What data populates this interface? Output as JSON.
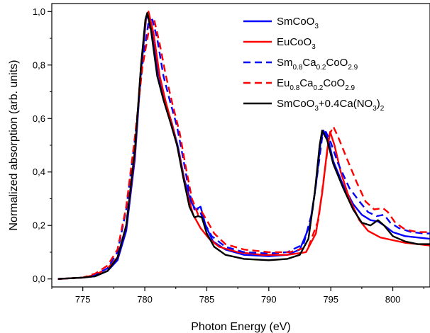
{
  "chart_data": {
    "type": "line",
    "xlabel": "Photon Energy (eV)",
    "ylabel": "Normalized absorption (arb. units)",
    "xlim": [
      772.5,
      803
    ],
    "ylim": [
      -0.03,
      1.03
    ],
    "x_ticks": [
      775,
      780,
      785,
      790,
      795,
      800
    ],
    "y_ticks": [
      0.0,
      0.2,
      0.4,
      0.6,
      0.8,
      1.0
    ],
    "x_tick_labels": [
      "775",
      "780",
      "785",
      "790",
      "795",
      "800"
    ],
    "y_tick_labels": [
      "0,0",
      "0,2",
      "0,4",
      "0,6",
      "0,8",
      "1,0"
    ],
    "legend_position": "top-right",
    "grid": false,
    "series": [
      {
        "name": "SmCoO3",
        "legend_parts": [
          [
            "SmCoO",
            ""
          ],
          [
            "3",
            "sub"
          ]
        ],
        "color": "#0000ff",
        "dash": "solid",
        "points": [
          [
            773,
            0.0
          ],
          [
            775,
            0.005
          ],
          [
            776,
            0.01
          ],
          [
            777,
            0.03
          ],
          [
            777.8,
            0.07
          ],
          [
            778.5,
            0.18
          ],
          [
            779.2,
            0.45
          ],
          [
            779.7,
            0.78
          ],
          [
            780.1,
            0.97
          ],
          [
            780.25,
            0.99
          ],
          [
            780.6,
            0.92
          ],
          [
            781.1,
            0.77
          ],
          [
            781.6,
            0.67
          ],
          [
            782.2,
            0.58
          ],
          [
            782.7,
            0.49
          ],
          [
            783.2,
            0.37
          ],
          [
            783.7,
            0.29
          ],
          [
            784.1,
            0.26
          ],
          [
            784.5,
            0.27
          ],
          [
            784.9,
            0.2
          ],
          [
            785.5,
            0.14
          ],
          [
            786.5,
            0.11
          ],
          [
            788,
            0.09
          ],
          [
            790,
            0.085
          ],
          [
            791.5,
            0.09
          ],
          [
            792.5,
            0.11
          ],
          [
            793.3,
            0.2
          ],
          [
            793.8,
            0.35
          ],
          [
            794.2,
            0.52
          ],
          [
            794.4,
            0.555
          ],
          [
            794.8,
            0.52
          ],
          [
            795.2,
            0.44
          ],
          [
            796,
            0.35
          ],
          [
            796.8,
            0.28
          ],
          [
            797.5,
            0.24
          ],
          [
            798.2,
            0.22
          ],
          [
            798.8,
            0.215
          ],
          [
            799.3,
            0.2
          ],
          [
            800,
            0.175
          ],
          [
            801,
            0.16
          ],
          [
            802,
            0.155
          ],
          [
            803,
            0.15
          ]
        ]
      },
      {
        "name": "EuCoO3",
        "legend_parts": [
          [
            "EuCoO",
            ""
          ],
          [
            "3",
            "sub"
          ]
        ],
        "color": "#ff0000",
        "dash": "solid",
        "points": [
          [
            773,
            0.0
          ],
          [
            775,
            0.005
          ],
          [
            776,
            0.015
          ],
          [
            777,
            0.04
          ],
          [
            777.8,
            0.08
          ],
          [
            778.5,
            0.2
          ],
          [
            779.2,
            0.47
          ],
          [
            779.7,
            0.8
          ],
          [
            780.1,
            0.98
          ],
          [
            780.3,
            1.0
          ],
          [
            780.7,
            0.92
          ],
          [
            781.2,
            0.76
          ],
          [
            781.7,
            0.66
          ],
          [
            782.3,
            0.56
          ],
          [
            782.8,
            0.46
          ],
          [
            783.3,
            0.34
          ],
          [
            783.9,
            0.24
          ],
          [
            784.5,
            0.19
          ],
          [
            785.2,
            0.15
          ],
          [
            786,
            0.12
          ],
          [
            787.5,
            0.1
          ],
          [
            789.5,
            0.09
          ],
          [
            791.5,
            0.09
          ],
          [
            793,
            0.1
          ],
          [
            793.8,
            0.17
          ],
          [
            794.3,
            0.32
          ],
          [
            794.7,
            0.48
          ],
          [
            794.95,
            0.55
          ],
          [
            795.3,
            0.5
          ],
          [
            795.8,
            0.4
          ],
          [
            796.5,
            0.3
          ],
          [
            797.3,
            0.22
          ],
          [
            798,
            0.18
          ],
          [
            799,
            0.155
          ],
          [
            800,
            0.145
          ],
          [
            801,
            0.135
          ],
          [
            802,
            0.13
          ],
          [
            803,
            0.125
          ]
        ]
      },
      {
        "name": "Sm0.8Ca0.2CoO2.9",
        "legend_parts": [
          [
            "Sm",
            ""
          ],
          [
            "0.8",
            "sub"
          ],
          [
            "Ca",
            ""
          ],
          [
            "0.2",
            "sub"
          ],
          [
            "CoO",
            ""
          ],
          [
            "2.9",
            "sub"
          ]
        ],
        "color": "#0000ff",
        "dash": "dashed",
        "points": [
          [
            773,
            0.0
          ],
          [
            775,
            0.005
          ],
          [
            776,
            0.015
          ],
          [
            777,
            0.04
          ],
          [
            777.8,
            0.1
          ],
          [
            778.5,
            0.26
          ],
          [
            779.2,
            0.52
          ],
          [
            779.8,
            0.8
          ],
          [
            780.3,
            0.96
          ],
          [
            780.6,
            0.97
          ],
          [
            781,
            0.9
          ],
          [
            781.5,
            0.76
          ],
          [
            782,
            0.67
          ],
          [
            782.6,
            0.57
          ],
          [
            783.1,
            0.45
          ],
          [
            783.6,
            0.32
          ],
          [
            784,
            0.26
          ],
          [
            784.4,
            0.26
          ],
          [
            784.8,
            0.21
          ],
          [
            785.4,
            0.16
          ],
          [
            786.5,
            0.12
          ],
          [
            788,
            0.1
          ],
          [
            790,
            0.095
          ],
          [
            791.5,
            0.1
          ],
          [
            792.8,
            0.13
          ],
          [
            793.5,
            0.25
          ],
          [
            794,
            0.42
          ],
          [
            794.3,
            0.53
          ],
          [
            794.6,
            0.55
          ],
          [
            795,
            0.51
          ],
          [
            795.6,
            0.43
          ],
          [
            796.5,
            0.34
          ],
          [
            797.3,
            0.29
          ],
          [
            798,
            0.25
          ],
          [
            798.7,
            0.235
          ],
          [
            799.3,
            0.24
          ],
          [
            799.8,
            0.21
          ],
          [
            800.5,
            0.19
          ],
          [
            801.5,
            0.175
          ],
          [
            802.5,
            0.17
          ],
          [
            803,
            0.17
          ]
        ]
      },
      {
        "name": "Eu0.8Ca0.2CoO2.9",
        "legend_parts": [
          [
            "Eu",
            ""
          ],
          [
            "0.8",
            "sub"
          ],
          [
            "Ca",
            ""
          ],
          [
            "0.2",
            "sub"
          ],
          [
            "CoO",
            ""
          ],
          [
            "2.9",
            "sub"
          ]
        ],
        "color": "#ff0000",
        "dash": "dashed",
        "points": [
          [
            773,
            0.0
          ],
          [
            775,
            0.005
          ],
          [
            776,
            0.02
          ],
          [
            777,
            0.05
          ],
          [
            777.8,
            0.11
          ],
          [
            778.5,
            0.27
          ],
          [
            779.2,
            0.53
          ],
          [
            779.8,
            0.79
          ],
          [
            780.4,
            0.95
          ],
          [
            780.75,
            0.97
          ],
          [
            781.2,
            0.88
          ],
          [
            781.7,
            0.76
          ],
          [
            782.2,
            0.66
          ],
          [
            782.8,
            0.55
          ],
          [
            783.3,
            0.42
          ],
          [
            783.8,
            0.3
          ],
          [
            784.3,
            0.24
          ],
          [
            784.6,
            0.25
          ],
          [
            785,
            0.22
          ],
          [
            785.6,
            0.17
          ],
          [
            786.5,
            0.13
          ],
          [
            788,
            0.11
          ],
          [
            790,
            0.1
          ],
          [
            791.7,
            0.1
          ],
          [
            793.2,
            0.12
          ],
          [
            794,
            0.22
          ],
          [
            794.5,
            0.4
          ],
          [
            794.9,
            0.54
          ],
          [
            795.2,
            0.57
          ],
          [
            795.6,
            0.53
          ],
          [
            796.3,
            0.45
          ],
          [
            797.1,
            0.36
          ],
          [
            797.8,
            0.29
          ],
          [
            798.5,
            0.26
          ],
          [
            799.2,
            0.265
          ],
          [
            799.6,
            0.25
          ],
          [
            800.2,
            0.21
          ],
          [
            801,
            0.185
          ],
          [
            802,
            0.175
          ],
          [
            803,
            0.175
          ]
        ]
      },
      {
        "name": "SmCoO3+0.4Ca(NO3)2",
        "legend_parts": [
          [
            "SmCoO",
            ""
          ],
          [
            "3",
            "sub"
          ],
          [
            "+0.4Ca(NO",
            ""
          ],
          [
            "3",
            "sub"
          ],
          [
            ")",
            ""
          ],
          [
            "2",
            "sub"
          ]
        ],
        "color": "#000000",
        "dash": "solid",
        "points": [
          [
            773,
            0.0
          ],
          [
            775,
            0.005
          ],
          [
            776,
            0.01
          ],
          [
            777,
            0.03
          ],
          [
            777.8,
            0.08
          ],
          [
            778.5,
            0.2
          ],
          [
            779.2,
            0.48
          ],
          [
            779.7,
            0.8
          ],
          [
            780.05,
            0.97
          ],
          [
            780.2,
            0.995
          ],
          [
            780.5,
            0.93
          ],
          [
            781,
            0.76
          ],
          [
            781.5,
            0.67
          ],
          [
            782.1,
            0.58
          ],
          [
            782.6,
            0.5
          ],
          [
            783.1,
            0.38
          ],
          [
            783.6,
            0.27
          ],
          [
            784,
            0.23
          ],
          [
            784.3,
            0.235
          ],
          [
            784.6,
            0.23
          ],
          [
            785,
            0.17
          ],
          [
            785.6,
            0.12
          ],
          [
            786.5,
            0.09
          ],
          [
            788,
            0.075
          ],
          [
            790,
            0.07
          ],
          [
            791.5,
            0.075
          ],
          [
            792.5,
            0.09
          ],
          [
            793.2,
            0.15
          ],
          [
            793.7,
            0.32
          ],
          [
            794.1,
            0.5
          ],
          [
            794.3,
            0.555
          ],
          [
            794.7,
            0.52
          ],
          [
            795.2,
            0.43
          ],
          [
            796,
            0.34
          ],
          [
            796.8,
            0.26
          ],
          [
            797.5,
            0.21
          ],
          [
            798.2,
            0.2
          ],
          [
            798.8,
            0.22
          ],
          [
            799.3,
            0.2
          ],
          [
            800,
            0.16
          ],
          [
            801,
            0.14
          ],
          [
            802,
            0.13
          ],
          [
            803,
            0.13
          ]
        ]
      }
    ]
  }
}
